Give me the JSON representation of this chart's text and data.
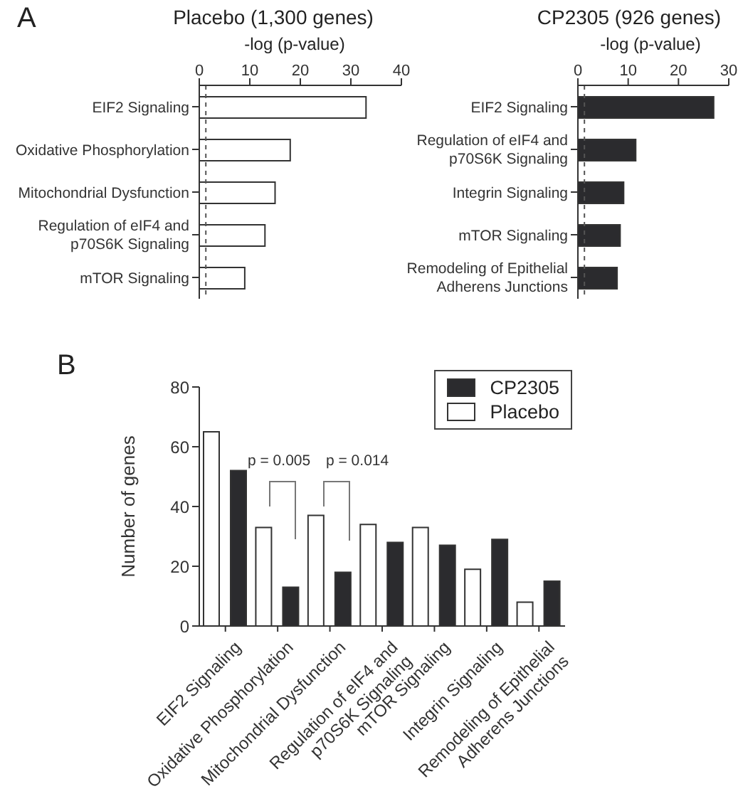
{
  "chart_data": [
    {
      "type": "bar",
      "orientation": "horizontal",
      "title": "Placebo (1,300 genes)",
      "xlabel": "-log (p-value)",
      "annotations": [
        "A"
      ],
      "categories": [
        "EIF2 Signaling",
        "Oxidative Phosphorylation",
        "Mitochondrial Dysfunction",
        "Regulation of eIF4 and\np70S6K Signaling",
        "mTOR Signaling"
      ],
      "values": [
        33,
        18,
        15,
        13,
        9
      ],
      "color": "#ffffff",
      "xlim": [
        0,
        40
      ],
      "xticks": [
        0,
        10,
        20,
        30,
        40
      ],
      "grid": false,
      "ref_lines": [
        {
          "axis": "x",
          "value": 1.3,
          "line_style": "dashed",
          "color": "#555555"
        }
      ]
    },
    {
      "type": "bar",
      "orientation": "horizontal",
      "title": "CP2305 (926 genes)",
      "xlabel": "-log (p-value)",
      "categories": [
        "EIF2 Signaling",
        "Regulation of eIF4 and\np70S6K Signaling",
        "Integrin Signaling",
        "mTOR Signaling",
        "Remodeling of Epithelial\nAdherens Junctions"
      ],
      "values": [
        27,
        11.5,
        9.1,
        8.4,
        7.8
      ],
      "color": "#2b2b2e",
      "xlim": [
        0,
        30
      ],
      "xticks": [
        0,
        10,
        20,
        30
      ],
      "grid": false,
      "ref_lines": [
        {
          "axis": "x",
          "value": 1.3,
          "line_style": "dashed",
          "color": "#555555"
        }
      ]
    },
    {
      "type": "bar",
      "ylabel": "Number of genes",
      "annotations": [
        "B",
        "p = 0.005",
        "p = 0.014"
      ],
      "categories": [
        "EIF2 Signaling",
        "Oxidative Phosphorylation",
        "Mitochondrial Dysfunction",
        "Regulation of eIF4 and\np70S6K Signaling",
        "mTOR Signaling",
        "Integrin Signaling",
        "Remodeling of Epithelial\nAdherens Junctions"
      ],
      "series": [
        {
          "name": "Placebo",
          "color": "#ffffff",
          "values": [
            65,
            33,
            37,
            34,
            33,
            19,
            8
          ]
        },
        {
          "name": "CP2305",
          "color": "#2b2b2e",
          "values": [
            52,
            13,
            18,
            28,
            27,
            29,
            15
          ]
        }
      ],
      "ylim": [
        0,
        80
      ],
      "yticks": [
        0,
        20,
        40,
        60,
        80
      ],
      "grid": false,
      "legend": "top right"
    }
  ]
}
